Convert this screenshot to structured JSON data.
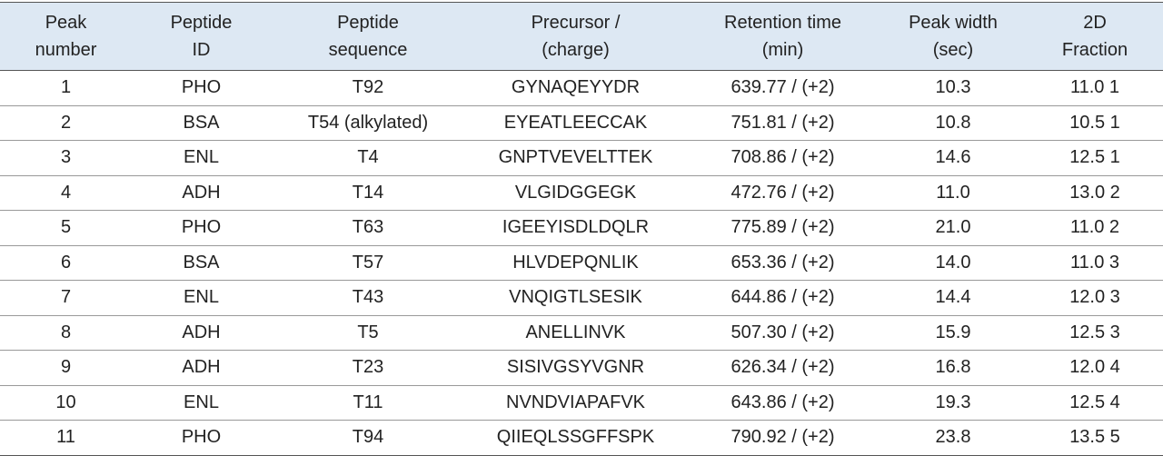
{
  "table": {
    "header": [
      [
        "Peak",
        "number"
      ],
      [
        "Peptide",
        "ID"
      ],
      [
        "Peptide",
        "sequence"
      ],
      [
        "Precursor /",
        "(charge)"
      ],
      [
        "Retention time",
        "(min)"
      ],
      [
        "Peak width",
        "(sec)"
      ],
      [
        "2D",
        "Fraction"
      ]
    ],
    "rows": [
      [
        "1",
        "PHO",
        "T92",
        "GYNAQEYYDR",
        "639.77 / (+2)",
        "10.3",
        "11.0 1"
      ],
      [
        "2",
        "BSA",
        "T54 (alkylated)",
        "EYEATLEECCAK",
        "751.81 / (+2)",
        "10.8",
        "10.5 1"
      ],
      [
        "3",
        "ENL",
        "T4",
        "GNPTVEVELTTEK",
        "708.86 / (+2)",
        "14.6",
        "12.5 1"
      ],
      [
        "4",
        "ADH",
        "T14",
        "VLGIDGGEGK",
        "472.76 / (+2)",
        "11.0",
        "13.0 2"
      ],
      [
        "5",
        "PHO",
        "T63",
        "IGEEYISDLDQLR",
        "775.89 / (+2)",
        "21.0",
        "11.0 2"
      ],
      [
        "6",
        "BSA",
        "T57",
        "HLVDEPQNLIK",
        "653.36 / (+2)",
        "14.0",
        "11.0 3"
      ],
      [
        "7",
        "ENL",
        "T43",
        "VNQIGTLSESIK",
        "644.86 / (+2)",
        "14.4",
        "12.0 3"
      ],
      [
        "8",
        "ADH",
        "T5",
        "ANELLINVK",
        "507.30 / (+2)",
        "15.9",
        "12.5 3"
      ],
      [
        "9",
        "ADH",
        "T23",
        "SISIVGSYVGNR",
        "626.34 / (+2)",
        "16.8",
        "12.0 4"
      ],
      [
        "10",
        "ENL",
        "T11",
        "NVNDVIAPAFVK",
        "643.86 / (+2)",
        "19.3",
        "12.5 4"
      ],
      [
        "11",
        "PHO",
        "T94",
        "QIIEQLSSGFFSPK",
        "790.92 / (+2)",
        "23.8",
        "13.5 5"
      ]
    ]
  }
}
